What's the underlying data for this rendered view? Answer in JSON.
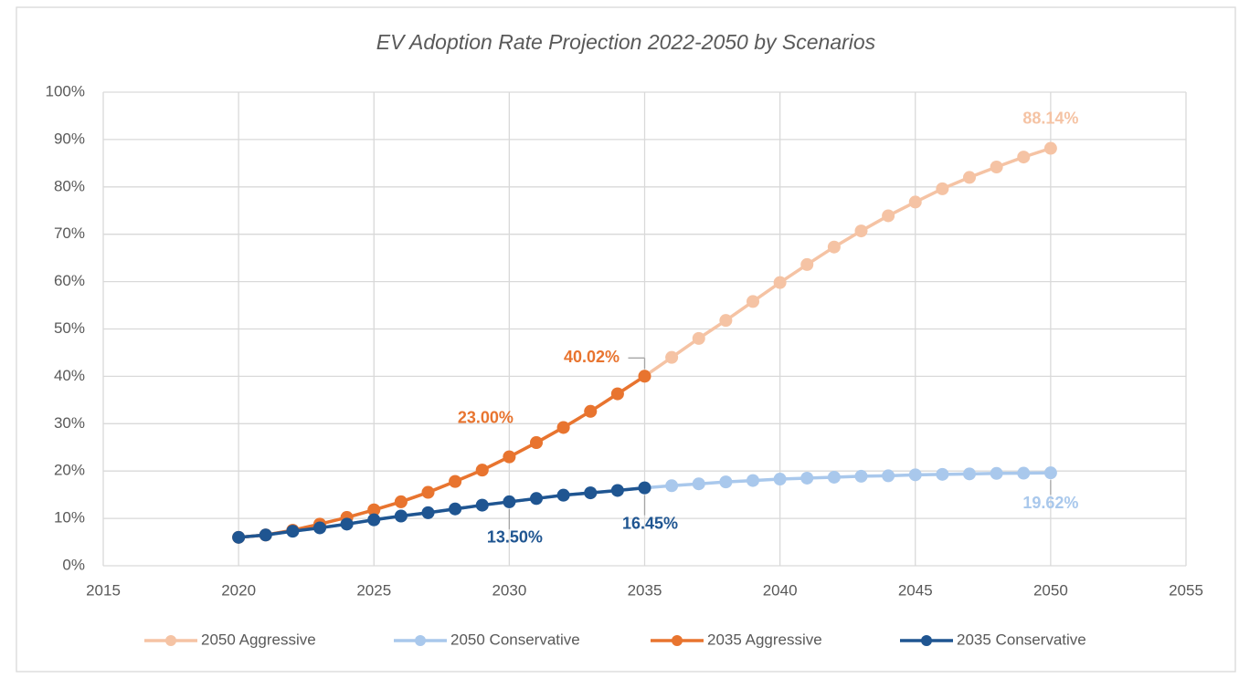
{
  "chart_data": {
    "type": "line",
    "title": "EV Adoption Rate Projection 2022-2050 by Scenarios",
    "x": [
      2020,
      2021,
      2022,
      2023,
      2024,
      2025,
      2026,
      2027,
      2028,
      2029,
      2030,
      2031,
      2032,
      2033,
      2034,
      2035,
      2036,
      2037,
      2038,
      2039,
      2040,
      2041,
      2042,
      2043,
      2044,
      2045,
      2046,
      2047,
      2048,
      2049,
      2050
    ],
    "series": [
      {
        "name": "2050 Aggressive",
        "color": "#f5c3a4",
        "values": [
          6.0,
          6.5,
          7.5,
          8.8,
          10.2,
          11.8,
          13.5,
          15.5,
          17.8,
          20.2,
          23.0,
          26.0,
          29.2,
          32.6,
          36.3,
          40.02,
          44.0,
          48.0,
          51.8,
          55.8,
          59.8,
          63.6,
          67.3,
          70.7,
          73.9,
          76.8,
          79.6,
          82.0,
          84.2,
          86.3,
          88.14
        ],
        "value_labels": [
          null,
          null,
          null,
          null,
          null,
          null,
          null,
          null,
          null,
          null,
          null,
          null,
          null,
          null,
          null,
          null,
          null,
          null,
          null,
          null,
          null,
          null,
          null,
          null,
          null,
          null,
          null,
          null,
          null,
          null,
          "88.14%"
        ]
      },
      {
        "name": "2050 Conservative",
        "color": "#a9c8ec",
        "values": [
          6.0,
          6.5,
          7.3,
          8.0,
          8.8,
          9.7,
          10.5,
          11.2,
          12.0,
          12.8,
          13.5,
          14.2,
          14.9,
          15.4,
          15.9,
          16.45,
          16.9,
          17.3,
          17.7,
          18.0,
          18.3,
          18.5,
          18.7,
          18.9,
          19.0,
          19.2,
          19.3,
          19.4,
          19.5,
          19.55,
          19.62
        ],
        "value_labels": [
          null,
          null,
          null,
          null,
          null,
          null,
          null,
          null,
          null,
          null,
          null,
          null,
          null,
          null,
          null,
          null,
          null,
          null,
          null,
          null,
          null,
          null,
          null,
          null,
          null,
          null,
          null,
          null,
          null,
          null,
          "19.62%"
        ]
      },
      {
        "name": "2035 Aggressive",
        "color": "#e8742f",
        "values": [
          6.0,
          6.5,
          7.5,
          8.8,
          10.2,
          11.8,
          13.5,
          15.5,
          17.8,
          20.2,
          23.0,
          26.0,
          29.2,
          32.6,
          36.3,
          40.02,
          null,
          null,
          null,
          null,
          null,
          null,
          null,
          null,
          null,
          null,
          null,
          null,
          null,
          null,
          null
        ],
        "value_labels": [
          null,
          null,
          null,
          null,
          null,
          null,
          null,
          null,
          null,
          null,
          "23.00%",
          null,
          null,
          null,
          null,
          "40.02%",
          null,
          null,
          null,
          null,
          null,
          null,
          null,
          null,
          null,
          null,
          null,
          null,
          null,
          null,
          null
        ]
      },
      {
        "name": "2035 Conservative",
        "color": "#1f5591",
        "values": [
          6.0,
          6.5,
          7.3,
          8.0,
          8.8,
          9.7,
          10.5,
          11.2,
          12.0,
          12.8,
          13.5,
          14.2,
          14.9,
          15.4,
          15.9,
          16.45,
          null,
          null,
          null,
          null,
          null,
          null,
          null,
          null,
          null,
          null,
          null,
          null,
          null,
          null,
          null
        ],
        "value_labels": [
          null,
          null,
          null,
          null,
          null,
          null,
          null,
          null,
          null,
          null,
          "13.50%",
          null,
          null,
          null,
          null,
          "16.45%",
          null,
          null,
          null,
          null,
          null,
          null,
          null,
          null,
          null,
          null,
          null,
          null,
          null,
          null,
          null
        ]
      }
    ],
    "xlim": [
      2015,
      2055
    ],
    "xticks": [
      2015,
      2020,
      2025,
      2030,
      2035,
      2040,
      2045,
      2050,
      2055
    ],
    "ylim": [
      0,
      100
    ],
    "yticks": [
      {
        "value": 0,
        "label": "0%"
      },
      {
        "value": 10,
        "label": "10%"
      },
      {
        "value": 20,
        "label": "20%"
      },
      {
        "value": 30,
        "label": "30%"
      },
      {
        "value": 40,
        "label": "40%"
      },
      {
        "value": 50,
        "label": "50%"
      },
      {
        "value": 60,
        "label": "60%"
      },
      {
        "value": 70,
        "label": "70%"
      },
      {
        "value": 80,
        "label": "80%"
      },
      {
        "value": 90,
        "label": "90%"
      },
      {
        "value": 100,
        "label": "100%"
      }
    ],
    "grid": true,
    "legend": "bottom"
  }
}
